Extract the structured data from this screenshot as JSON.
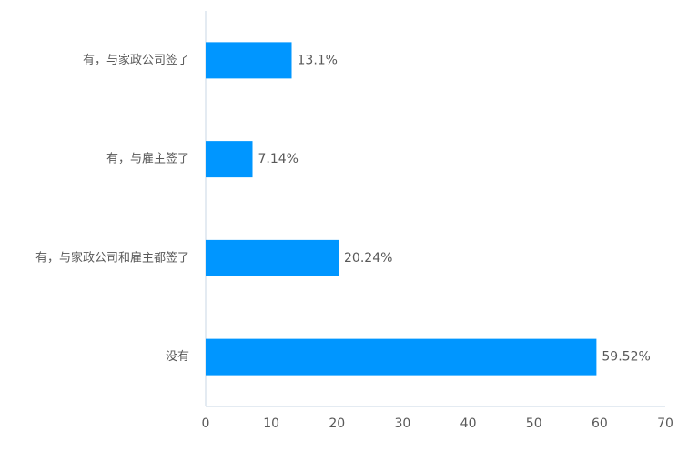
{
  "chart_data": {
    "type": "hbar",
    "categories": [
      "有，与家政公司签了",
      "有，与雇主签了",
      "有，与家政公司和雇主都签了",
      "没有"
    ],
    "values": [
      13.1,
      7.14,
      20.24,
      59.52
    ],
    "value_labels": [
      "13.1%",
      "7.14%",
      "20.24%",
      "59.52%"
    ],
    "color": "#0096ff",
    "xlim": [
      0,
      70
    ],
    "xticks": [
      0,
      10,
      20,
      30,
      40,
      50,
      60,
      70
    ],
    "grid": false
  }
}
